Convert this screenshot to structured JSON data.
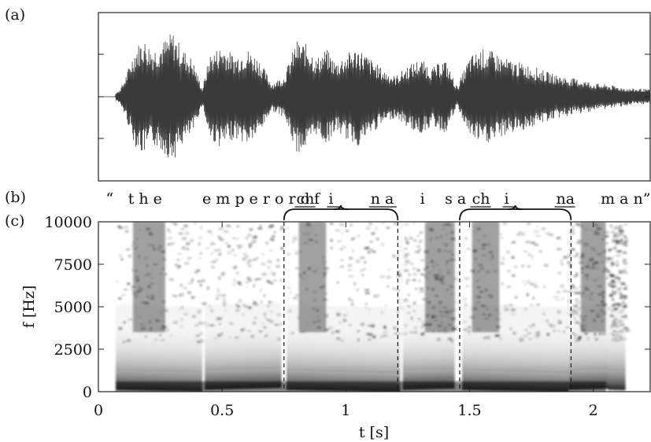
{
  "chart_data": [
    {
      "panel": "(a)",
      "type": "line",
      "description_label": "waveform",
      "x": [
        0.0,
        0.05,
        0.08,
        0.1,
        0.15,
        0.18,
        0.22,
        0.26,
        0.3,
        0.34,
        0.38,
        0.42,
        0.45,
        0.5,
        0.55,
        0.6,
        0.65,
        0.7,
        0.75,
        0.8,
        0.85,
        0.88,
        0.92,
        0.96,
        1.0,
        1.05,
        1.1,
        1.15,
        1.2,
        1.25,
        1.3,
        1.35,
        1.4,
        1.45,
        1.5,
        1.55,
        1.6,
        1.65,
        1.7,
        1.75,
        1.8,
        1.85,
        1.9,
        1.95,
        2.0,
        2.05,
        2.1,
        2.15,
        2.2,
        2.23
      ],
      "envelope": [
        0.0,
        0.01,
        0.08,
        0.2,
        0.72,
        0.85,
        0.7,
        0.8,
        0.95,
        0.7,
        0.55,
        0.12,
        0.62,
        0.75,
        0.6,
        0.7,
        0.55,
        0.2,
        0.3,
        0.82,
        0.75,
        0.55,
        0.7,
        0.5,
        0.62,
        0.72,
        0.55,
        0.4,
        0.3,
        0.45,
        0.55,
        0.42,
        0.55,
        0.15,
        0.58,
        0.7,
        0.65,
        0.55,
        0.5,
        0.45,
        0.38,
        0.32,
        0.28,
        0.25,
        0.2,
        0.18,
        0.15,
        0.12,
        0.12,
        0.1
      ],
      "xlim": [
        0,
        2.23
      ],
      "ylim": [
        -1,
        1
      ]
    },
    {
      "panel": "(c)",
      "type": "heatmap",
      "xlabel": "t [s]",
      "ylabel": "f [Hz]",
      "xlim": [
        0,
        2.23
      ],
      "ylim": [
        0,
        10000
      ],
      "x_ticks": [
        "0",
        "0.5",
        "1",
        "1.5",
        "2"
      ],
      "x_tick_values": [
        0,
        0.5,
        1,
        1.5,
        2
      ],
      "y_ticks": [
        "0",
        "2500",
        "5000",
        "7500",
        "10000"
      ],
      "y_tick_values": [
        0,
        2500,
        5000,
        7500,
        10000
      ],
      "dashed_markers_s": [
        0.75,
        1.21,
        1.46,
        1.91
      ],
      "brace_spans_s": [
        [
          0.75,
          1.21
        ],
        [
          1.46,
          1.91
        ]
      ],
      "voiced_segments_s": [
        [
          0.07,
          0.42
        ],
        [
          0.43,
          0.74
        ],
        [
          0.76,
          1.22
        ],
        [
          1.23,
          1.44
        ],
        [
          1.47,
          1.9
        ],
        [
          1.9,
          2.06
        ],
        [
          2.06,
          2.13
        ]
      ],
      "bursts_s": [
        [
          0.14,
          0.27
        ],
        [
          0.81,
          0.92
        ],
        [
          1.32,
          1.44
        ],
        [
          1.51,
          1.62
        ],
        [
          1.95,
          2.05
        ]
      ]
    }
  ],
  "labels": {
    "panel_a": "(a)",
    "panel_b": "(b)",
    "panel_c": "(c)"
  },
  "transcript": [
    {
      "text": "“",
      "t": 0.03,
      "underline": false
    },
    {
      "text": "t h e",
      "t": 0.12,
      "underline": false
    },
    {
      "text": "e m p e r o r o f",
      "t": 0.42,
      "underline": false
    },
    {
      "text": "ch",
      "t": 0.8,
      "underline": true
    },
    {
      "text": "i",
      "t": 0.93,
      "underline": true
    },
    {
      "text": "n a",
      "t": 1.1,
      "underline": true
    },
    {
      "text": "i",
      "t": 1.3,
      "underline": false
    },
    {
      "text": "s a",
      "t": 1.4,
      "underline": false
    },
    {
      "text": "ch",
      "t": 1.51,
      "underline": true
    },
    {
      "text": "i",
      "t": 1.64,
      "underline": true
    },
    {
      "text": "na",
      "t": 1.85,
      "underline": true
    },
    {
      "text": "m a n”",
      "t": 2.03,
      "underline": false
    }
  ]
}
